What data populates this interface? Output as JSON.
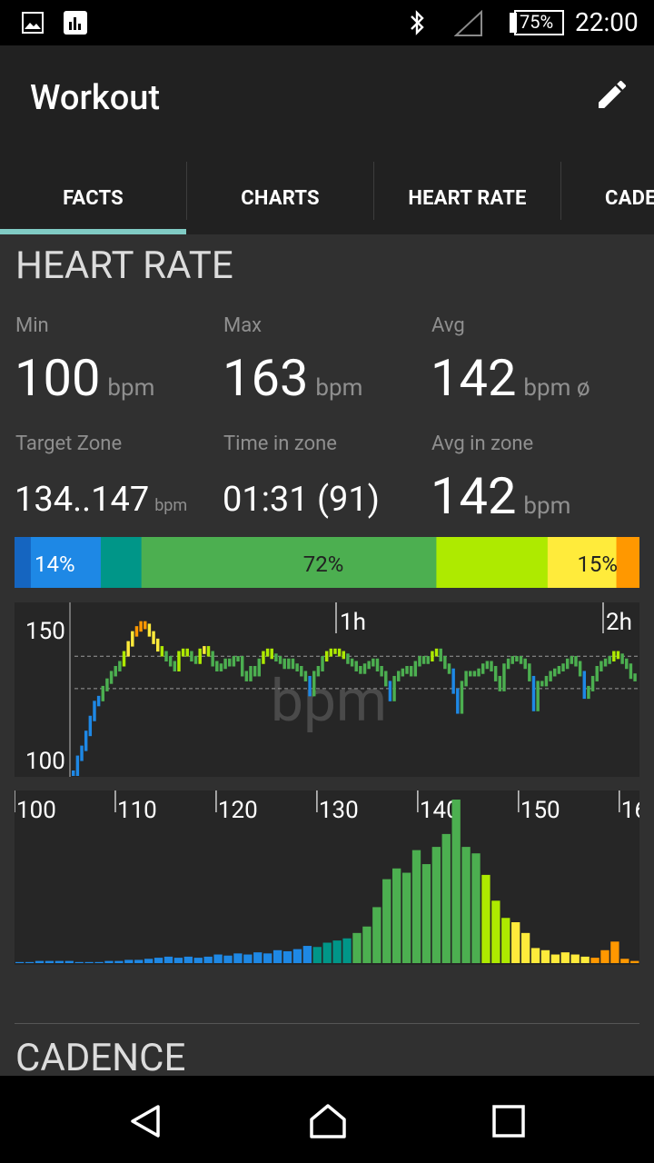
{
  "status_bar": {
    "battery": "75%",
    "time": "22:00",
    "icons": [
      "image-icon",
      "chart-icon",
      "bluetooth-icon",
      "signal-icon",
      "battery-icon"
    ]
  },
  "app_bar": {
    "title": "Workout",
    "edit_icon": "edit-icon"
  },
  "tabs": [
    "FACTS",
    "CHARTS",
    "HEART RATE",
    "CADE"
  ],
  "heart_rate": {
    "section_title": "HEART RATE",
    "min": {
      "label": "Min",
      "value": "100",
      "unit": "bpm"
    },
    "max": {
      "label": "Max",
      "value": "163",
      "unit": "bpm"
    },
    "avg": {
      "label": "Avg",
      "value": "142",
      "unit": "bpm ø"
    },
    "target_zone": {
      "label": "Target Zone",
      "value": "134..147",
      "unit": "bpm"
    },
    "time_in_zone": {
      "label": "Time in zone",
      "value": "01:31 (91)"
    },
    "avg_in_zone": {
      "label": "Avg in zone",
      "value": "142",
      "unit": "bpm"
    },
    "zone_bar": {
      "labels": [
        "14%",
        "72%",
        "15%"
      ],
      "segments": [
        {
          "color": "#1565c0",
          "fraction": 0.026
        },
        {
          "color": "#1e88e5",
          "fraction": 0.112
        },
        {
          "color": "#009688",
          "fraction": 0.065
        },
        {
          "color": "#4caf50",
          "fraction": 0.472
        },
        {
          "color": "#aeea00",
          "fraction": 0.178
        },
        {
          "color": "#ffeb3b",
          "fraction": 0.11
        },
        {
          "color": "#ff9800",
          "fraction": 0.037
        }
      ]
    }
  },
  "chart_data": [
    {
      "type": "line",
      "watermark": "bpm",
      "y_ticks": [
        "150",
        "100"
      ],
      "x_ticks": [
        "1h",
        "2h"
      ],
      "ylim": [
        100,
        165
      ],
      "reference_lines": [
        147,
        134
      ],
      "series": [
        {
          "values": [
            100,
            106,
            110,
            116,
            122,
            128,
            130,
            134,
            137,
            140,
            142,
            144,
            148,
            152,
            156,
            158,
            160,
            159,
            156,
            153,
            150,
            148,
            146,
            144,
            142,
            148,
            149,
            148,
            146,
            145,
            149,
            150,
            148,
            144,
            142,
            143,
            145,
            144,
            146,
            146,
            140,
            138,
            142,
            140,
            145,
            148,
            149,
            147,
            146,
            145,
            143,
            145,
            143,
            142,
            140,
            138,
            132,
            140,
            142,
            146,
            148,
            149,
            149,
            148,
            147,
            145,
            144,
            142,
            141,
            143,
            144,
            145,
            142,
            140,
            136,
            130,
            138,
            140,
            141,
            142,
            140,
            144,
            146,
            145,
            146,
            148,
            149,
            146,
            143,
            141,
            133,
            125,
            136,
            140,
            140,
            140,
            141,
            143,
            144,
            142,
            138,
            134,
            143,
            145,
            146,
            146,
            145,
            143,
            138,
            126,
            136,
            136,
            138,
            140,
            141,
            142,
            143,
            145,
            146,
            144,
            140,
            131,
            134,
            138,
            142,
            144,
            145,
            146,
            148,
            147,
            145,
            143,
            139,
            138
          ]
        }
      ]
    },
    {
      "type": "bar",
      "x_ticks": [
        "100",
        "110",
        "120",
        "130",
        "140",
        "150",
        "160"
      ],
      "xlim": [
        100,
        162
      ],
      "values": [
        1,
        1,
        2,
        2,
        2,
        2,
        1,
        1,
        1,
        2,
        2,
        3,
        3,
        4,
        5,
        6,
        5,
        6,
        5,
        6,
        8,
        7,
        9,
        8,
        10,
        9,
        12,
        11,
        13,
        16,
        15,
        19,
        21,
        23,
        28,
        34,
        52,
        78,
        88,
        84,
        105,
        92,
        108,
        120,
        152,
        108,
        102,
        82,
        58,
        42,
        38,
        28,
        14,
        12,
        8,
        10,
        8,
        6,
        5,
        12,
        20,
        4,
        2
      ],
      "colors_by_zone": {
        "below_110": "#1e88e5",
        "zone_2": "#009688",
        "target": "#4caf50",
        "above": "#aeea00",
        "high": "#ffeb3b",
        "max": "#ff9800"
      }
    }
  ],
  "cadence": {
    "section_title": "CADENCE"
  },
  "nav_bar": {
    "icons": [
      "back-icon",
      "home-icon",
      "recents-icon"
    ]
  }
}
